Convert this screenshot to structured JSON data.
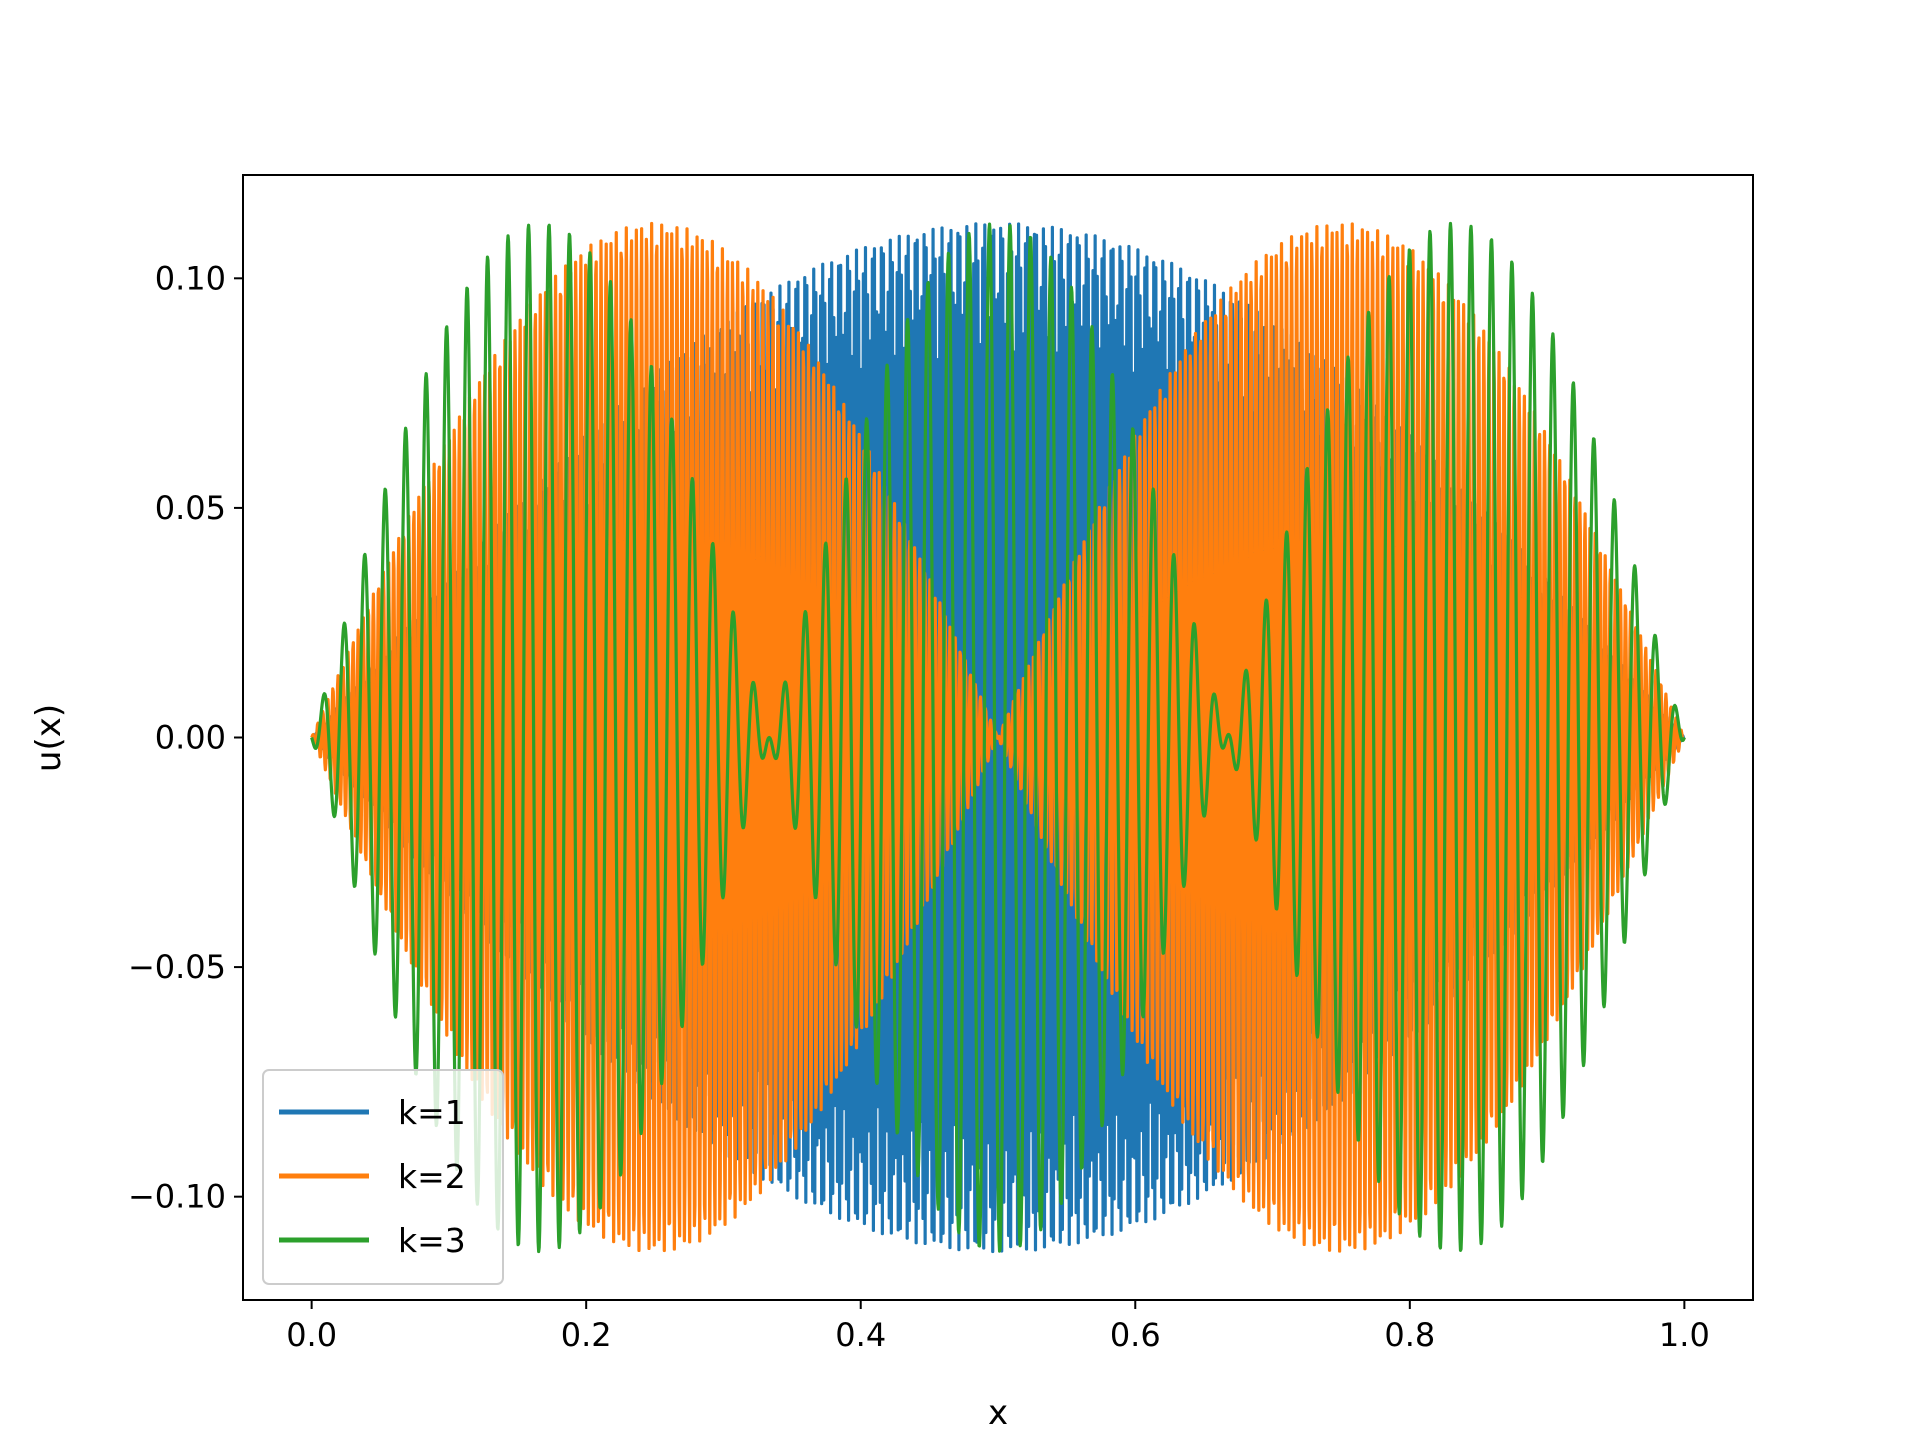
{
  "chart_data": {
    "type": "line",
    "title": "",
    "xlabel": "x",
    "ylabel": "u(x)",
    "xlim": [
      -0.05,
      1.05
    ],
    "ylim": [
      -0.1225,
      0.1225
    ],
    "x_ticks": [
      0.0,
      0.2,
      0.4,
      0.6,
      0.8,
      1.0
    ],
    "x_tick_labels": [
      "0.0",
      "0.2",
      "0.4",
      "0.6",
      "0.8",
      "1.0"
    ],
    "y_ticks": [
      -0.1,
      -0.05,
      0.0,
      0.05,
      0.1
    ],
    "y_tick_labels": [
      "−0.10",
      "−0.05",
      "0.00",
      "0.05",
      "0.10"
    ],
    "grid": false,
    "legend_position": "lower-left",
    "x_range": [
      0.0,
      1.0
    ],
    "amplitude": 0.112,
    "series": [
      {
        "name": "k=1",
        "color": "#1f77b4",
        "k": 1
      },
      {
        "name": "k=2",
        "color": "#ff7f0e",
        "k": 2
      },
      {
        "name": "k=3",
        "color": "#2ca02c",
        "k": 3
      }
    ]
  }
}
